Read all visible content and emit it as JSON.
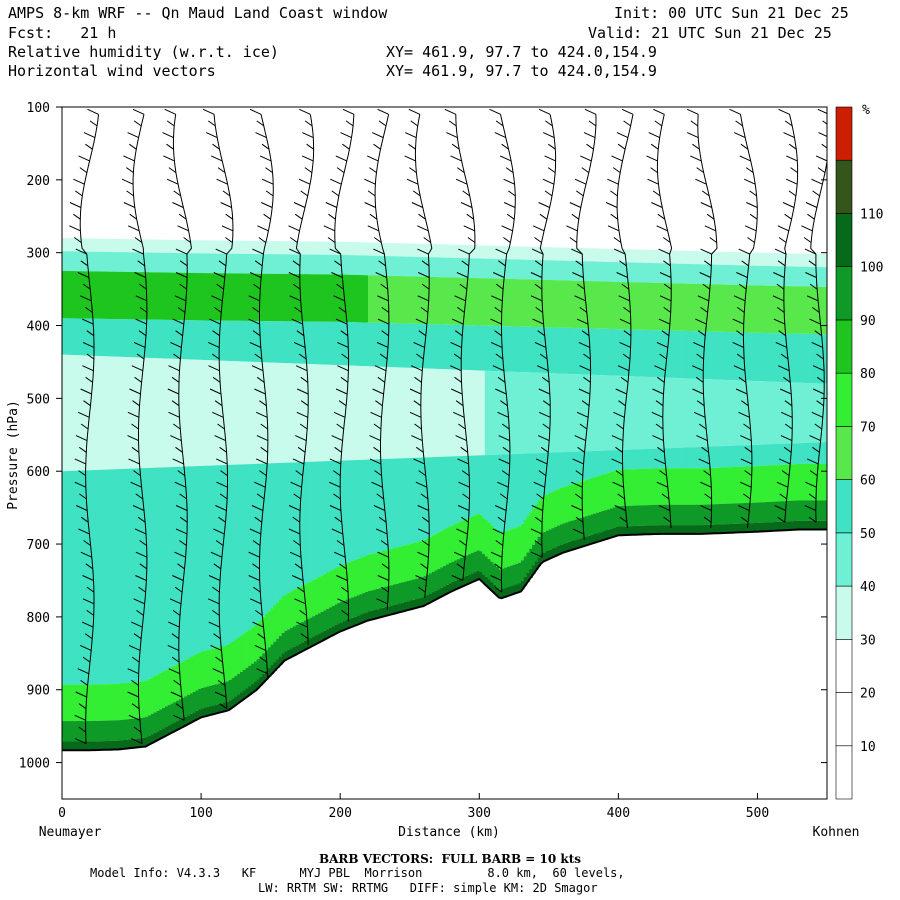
{
  "header": {
    "title": "AMPS 8-km WRF -- Qn Maud Land Coast window",
    "init": "Init: 00 UTC Sun 21 Dec 25",
    "fcst": "Fcst:   21 h",
    "valid": "Valid: 21 UTC Sun 21 Dec 25",
    "field1": "Relative humidity (w.r.t. ice)",
    "field1_xy": "XY= 461.9, 97.7 to 424.0,154.9",
    "field2": "Horizontal wind vectors",
    "field2_xy": "XY= 461.9, 97.7 to 424.0,154.9"
  },
  "footer": {
    "barb_note": "BARB VECTORS:  FULL BARB = 10 kts",
    "model_info": "Model Info: V4.3.3   KF      MYJ PBL  Morrison         8.0 km,  60 levels,",
    "model_info2": "LW: RRTM SW: RRTMG   DIFF: simple KM: 2D Smagor"
  },
  "colors": {
    "levels": [
      "#ffffff",
      "#ffffff",
      "#ffffff",
      "#c8fbec",
      "#6ff0d4",
      "#3fe2c2",
      "#59e84c",
      "#33ee33",
      "#1fc51f",
      "#0f9a27",
      "#076a1a",
      "#35561a",
      "#cc1e00"
    ]
  },
  "chart_data": {
    "type": "heatmap",
    "title": "Relative humidity (w.r.t. ice) with horizontal wind vectors",
    "xlabel": "Distance (km)",
    "ylabel": "Pressure (hPa)",
    "xlim": [
      0,
      550
    ],
    "ylim": [
      1050,
      100
    ],
    "x_ticks": [
      0,
      100,
      200,
      300,
      400,
      500
    ],
    "y_ticks": [
      100,
      200,
      300,
      400,
      500,
      600,
      700,
      800,
      900,
      1000
    ],
    "left_label": "Neumayer",
    "right_label": "Kohnen",
    "colorbar": {
      "unit": "%",
      "ticks": [
        10,
        20,
        30,
        40,
        50,
        60,
        70,
        80,
        90,
        100,
        110
      ]
    },
    "terrain_surface_hPa": {
      "x_km": [
        0,
        20,
        40,
        60,
        80,
        100,
        120,
        140,
        160,
        180,
        200,
        220,
        240,
        260,
        280,
        300,
        315,
        330,
        345,
        360,
        380,
        400,
        430,
        460,
        500,
        530,
        550
      ],
      "p_hPa": [
        983,
        983,
        982,
        978,
        958,
        938,
        928,
        900,
        860,
        840,
        820,
        805,
        795,
        785,
        765,
        748,
        775,
        765,
        725,
        712,
        700,
        688,
        686,
        686,
        683,
        680,
        680
      ]
    },
    "moist_top_hPa": {
      "x_km": [
        0,
        100,
        200,
        300,
        400,
        500,
        550
      ],
      "p_hPa": [
        280,
        283,
        285,
        290,
        295,
        300,
        302
      ]
    },
    "barb_columns_km": [
      20,
      58,
      87,
      116,
      145,
      174,
      203,
      232,
      261,
      290,
      319,
      348,
      377,
      406,
      435,
      464,
      493,
      522,
      545
    ]
  }
}
